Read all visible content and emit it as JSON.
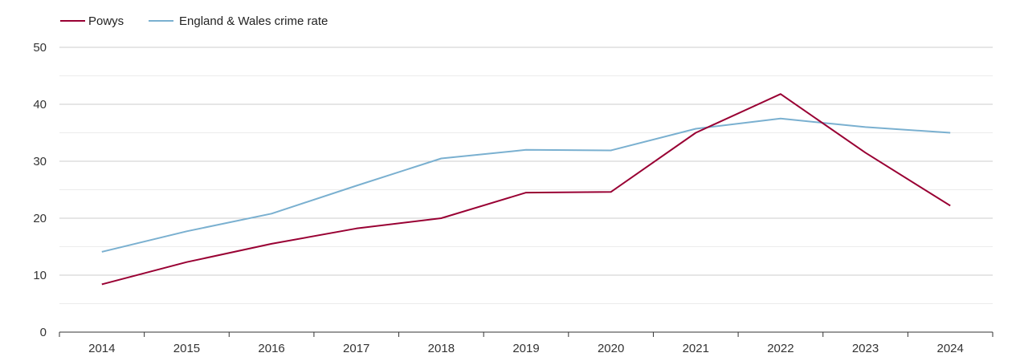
{
  "chart_data": {
    "type": "line",
    "title": "",
    "xlabel": "",
    "ylabel": "",
    "x": [
      "2014",
      "2015",
      "2016",
      "2017",
      "2018",
      "2019",
      "2020",
      "2021",
      "2022",
      "2023",
      "2024"
    ],
    "ylim": [
      0,
      50
    ],
    "yticks": [
      0,
      10,
      20,
      30,
      40,
      50
    ],
    "grid": true,
    "legend_position": "top-left",
    "series": [
      {
        "name": "Powys",
        "color": "#990033",
        "values": [
          8.4,
          12.3,
          15.5,
          18.2,
          20.0,
          24.5,
          24.6,
          35.0,
          41.8,
          31.5,
          22.2
        ]
      },
      {
        "name": "England & Wales crime rate",
        "color": "#7ab0d0",
        "values": [
          14.1,
          17.7,
          20.8,
          25.7,
          30.5,
          32.0,
          31.9,
          35.7,
          37.5,
          36.0,
          35.0
        ]
      }
    ]
  }
}
